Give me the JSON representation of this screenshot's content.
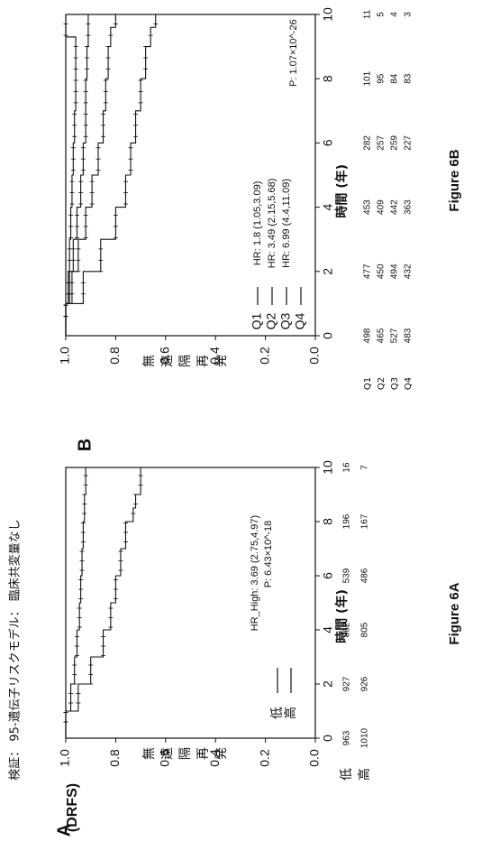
{
  "header": {
    "title": "検証： 95-遺伝子リスクモデル： 臨床共変量なし"
  },
  "panels": [
    {
      "letter": "A",
      "figure_label": "Figure 6A",
      "ylabel": "無遠隔再発",
      "ylabel_suffix": "(DRFS)",
      "xlabel": "時間 (年)",
      "legend": [
        {
          "name": "低",
          "color": "#111111"
        },
        {
          "name": "高",
          "color": "#111111"
        }
      ],
      "hr_text": "HR_High: 3.69 (2.75,4.97)",
      "p_text": "P: 6.43×10^-18",
      "risk_table": {
        "rows": [
          {
            "label": "低",
            "counts": [
              "963",
              "927",
              "862",
              "539",
              "196",
              "16"
            ]
          },
          {
            "label": "高",
            "counts": [
              "1010",
              "926",
              "805",
              "486",
              "167",
              "7"
            ]
          }
        ]
      }
    },
    {
      "letter": "B",
      "figure_label": "Figure 6B",
      "ylabel": "無遠隔再発",
      "xlabel": "時間 (年)",
      "legend": [
        {
          "name": "Q1",
          "hr": "HR: 1.8 (1.05,3.09)"
        },
        {
          "name": "Q2",
          "hr": "HR: 3.49 (2.15,5.68)"
        },
        {
          "name": "Q3",
          "hr": "HR: 6.99 (4.4,11.09)"
        },
        {
          "name": "Q4",
          "hr": ""
        }
      ],
      "p_text": "P: 1.07×10^-26",
      "risk_table": {
        "rows": [
          {
            "label": "Q1",
            "counts": [
              "498",
              "477",
              "453",
              "282",
              "101",
              "11"
            ]
          },
          {
            "label": "Q2",
            "counts": [
              "465",
              "450",
              "409",
              "257",
              "95",
              "5"
            ]
          },
          {
            "label": "Q3",
            "counts": [
              "527",
              "494",
              "442",
              "259",
              "84",
              "4"
            ]
          },
          {
            "label": "Q4",
            "counts": [
              "483",
              "432",
              "363",
              "227",
              "83",
              "3"
            ]
          }
        ]
      }
    }
  ],
  "chart_data": [
    {
      "type": "line",
      "title": "",
      "xlabel": "時間 (年)",
      "ylabel": "無遠隔再発 (DRFS)",
      "xlim": [
        0,
        10
      ],
      "ylim": [
        0,
        1.0
      ],
      "x_ticks": [
        0,
        2,
        4,
        6,
        8,
        10
      ],
      "y_ticks": [
        "0.0",
        "0.2",
        "0.4",
        "0.6",
        "0.8",
        "1.0"
      ],
      "series": [
        {
          "name": "低",
          "x": [
            0,
            1,
            2,
            3,
            4,
            5,
            6,
            7,
            8,
            9,
            9.6,
            10
          ],
          "y": [
            1.0,
            0.98,
            0.965,
            0.955,
            0.945,
            0.94,
            0.935,
            0.93,
            0.925,
            0.92,
            0.92,
            0.92
          ]
        },
        {
          "name": "高",
          "x": [
            0,
            1,
            2,
            3,
            4,
            5,
            6,
            7,
            8,
            8.5,
            9,
            9.5,
            10
          ],
          "y": [
            1.0,
            0.95,
            0.9,
            0.85,
            0.82,
            0.8,
            0.78,
            0.76,
            0.73,
            0.72,
            0.7,
            0.7,
            0.7
          ]
        }
      ]
    },
    {
      "type": "line",
      "title": "",
      "xlabel": "時間 (年)",
      "ylabel": "無遠隔再発",
      "xlim": [
        0,
        10
      ],
      "ylim": [
        0,
        1.0
      ],
      "x_ticks": [
        0,
        2,
        4,
        6,
        8,
        10
      ],
      "y_ticks": [
        "0.0",
        "0.2",
        "0.4",
        "0.6",
        "0.8",
        "1.0"
      ],
      "series": [
        {
          "name": "Q1",
          "x": [
            0,
            1,
            2,
            3,
            4,
            5,
            6,
            7,
            8,
            9,
            9.3,
            10
          ],
          "y": [
            1.0,
            0.99,
            0.985,
            0.98,
            0.975,
            0.97,
            0.965,
            0.96,
            0.96,
            0.96,
            1.0,
            1.0
          ]
        },
        {
          "name": "Q2",
          "x": [
            0,
            1,
            2,
            3,
            4,
            5,
            6,
            7,
            8,
            9,
            10
          ],
          "y": [
            1.0,
            0.985,
            0.97,
            0.955,
            0.94,
            0.93,
            0.92,
            0.92,
            0.915,
            0.91,
            0.91
          ]
        },
        {
          "name": "Q3",
          "x": [
            0,
            1,
            2,
            3,
            4,
            5,
            6,
            7,
            8,
            9,
            9.6,
            10
          ],
          "y": [
            1.0,
            0.975,
            0.95,
            0.92,
            0.895,
            0.87,
            0.85,
            0.84,
            0.83,
            0.82,
            0.8,
            0.8
          ]
        },
        {
          "name": "Q4",
          "x": [
            0,
            1,
            2,
            3,
            4,
            5,
            6,
            7,
            8,
            9,
            9.6,
            10
          ],
          "y": [
            1.0,
            0.93,
            0.86,
            0.8,
            0.76,
            0.74,
            0.72,
            0.7,
            0.68,
            0.66,
            0.64,
            0.64
          ]
        }
      ]
    }
  ]
}
